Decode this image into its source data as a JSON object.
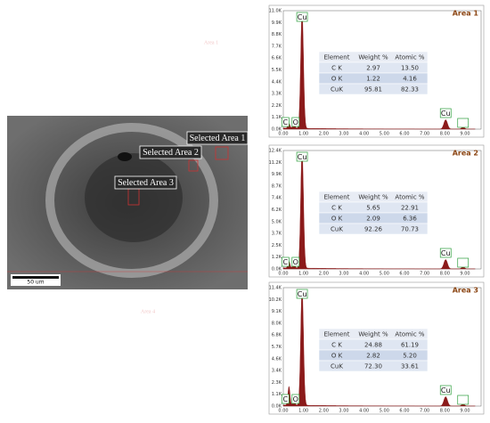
{
  "sem": {
    "labels": [
      "Selected Area 1",
      "Selected Area 2",
      "Selected Area 3"
    ],
    "scale_bar": "50 um",
    "faint_labels": [
      "Area 1",
      "Area 4"
    ]
  },
  "panels": [
    {
      "title": "Area 1",
      "yticks": [
        "11.0K",
        "9.9K",
        "8.8K",
        "7.7K",
        "6.6K",
        "5.5K",
        "4.4K",
        "3.3K",
        "2.2K",
        "1.1K",
        "0.0K"
      ],
      "xticks": [
        "0.00",
        "1.00",
        "2.00",
        "3.00",
        "4.00",
        "5.00",
        "6.00",
        "7.00",
        "8.00",
        "9.00"
      ],
      "peak_labels": [
        "C",
        "O",
        "Cu",
        "Cu"
      ],
      "table": {
        "header": [
          "Element",
          "Weight %",
          "Atomic %"
        ],
        "rows": [
          [
            "C K",
            "2.97",
            "13.50"
          ],
          [
            "O K",
            "1.22",
            "4.16"
          ],
          [
            "CuK",
            "95.81",
            "82.33"
          ]
        ]
      }
    },
    {
      "title": "Area 2",
      "yticks": [
        "12.4K",
        "11.2K",
        "9.9K",
        "8.7K",
        "7.4K",
        "6.2K",
        "5.0K",
        "3.7K",
        "2.5K",
        "1.2K",
        "0.0K"
      ],
      "xticks": [
        "0.00",
        "1.00",
        "2.00",
        "3.00",
        "4.00",
        "5.00",
        "6.00",
        "7.00",
        "8.00",
        "9.00"
      ],
      "peak_labels": [
        "C",
        "O",
        "Cu",
        "Cu"
      ],
      "table": {
        "header": [
          "Element",
          "Weight %",
          "Atomic %"
        ],
        "rows": [
          [
            "C K",
            "5.65",
            "22.91"
          ],
          [
            "O K",
            "2.09",
            "6.36"
          ],
          [
            "CuK",
            "92.26",
            "70.73"
          ]
        ]
      }
    },
    {
      "title": "Area 3",
      "yticks": [
        "11.4K",
        "10.2K",
        "9.1K",
        "8.0K",
        "6.8K",
        "5.7K",
        "4.6K",
        "3.4K",
        "2.3K",
        "1.1K",
        "0.0K"
      ],
      "xticks": [
        "0.00",
        "1.00",
        "2.00",
        "3.00",
        "4.00",
        "5.00",
        "6.00",
        "7.00",
        "8.00",
        "9.00"
      ],
      "peak_labels": [
        "C",
        "O",
        "Cu",
        "Cu"
      ],
      "table": {
        "header": [
          "Element",
          "Weight %",
          "Atomic %"
        ],
        "rows": [
          [
            "C K",
            "24.88",
            "61.19"
          ],
          [
            "O K",
            "2.82",
            "5.20"
          ],
          [
            "CuK",
            "72.30",
            "33.61"
          ]
        ]
      }
    }
  ]
}
